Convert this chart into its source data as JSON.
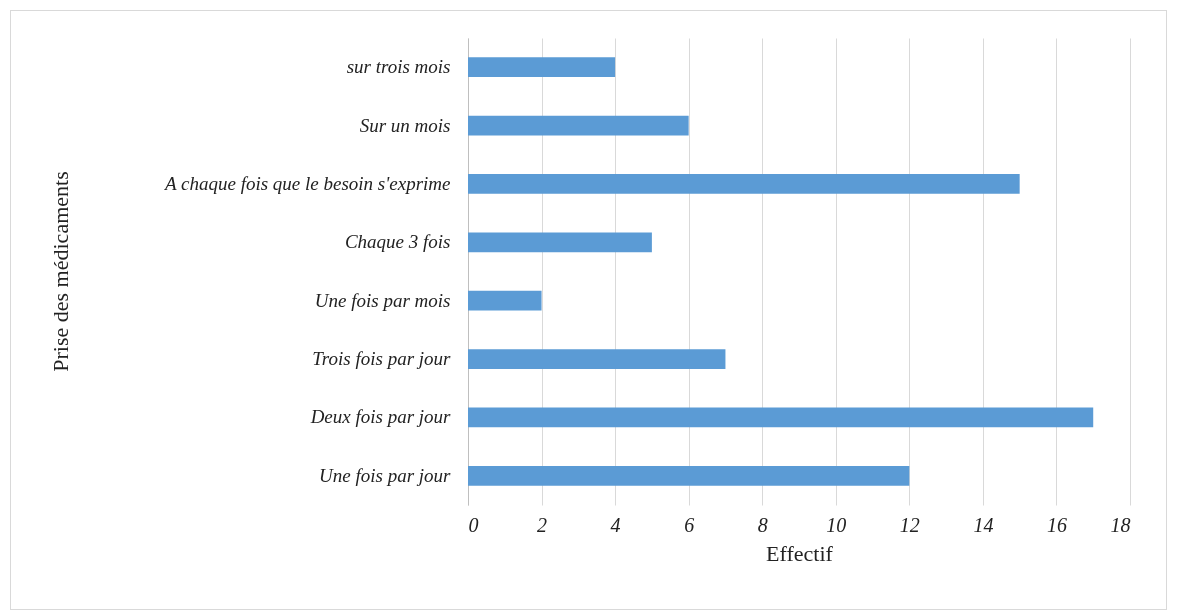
{
  "chart_data": {
    "type": "bar",
    "orientation": "horizontal",
    "xlabel": "Effectif",
    "ylabel": "Prise des médicaments",
    "categories": [
      "sur trois mois",
      "Sur un mois",
      "A chaque fois que le besoin s'exprime",
      "Chaque 3 fois",
      "Une fois par mois",
      "Trois fois par jour",
      "Deux fois par jour",
      "Une fois par jour"
    ],
    "values": [
      4,
      6,
      15,
      5,
      2,
      7,
      17,
      12
    ],
    "color": "#5b9bd5",
    "xlim": [
      0,
      18
    ],
    "xticks": [
      0,
      2,
      4,
      6,
      8,
      10,
      12,
      14,
      16,
      18
    ],
    "grid": "x"
  }
}
